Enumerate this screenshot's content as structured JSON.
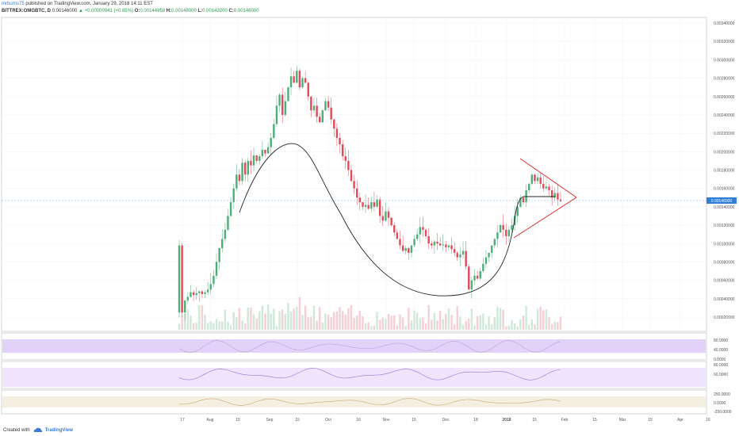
{
  "header": {
    "line1_author": "mrburns75",
    "line1_rest": "published on TradingView.com, January 29, 2018 14:11 EST",
    "symbol": "BITTREX:OMGBTC, D",
    "last": "0.00146000",
    "change": "▲ +0.00000941 (+0.65%)",
    "o_label": "O:",
    "o": "0.00144958",
    "h_label": "H:",
    "h": "0.00148000",
    "l_label": "L:",
    "l": "0.00143200",
    "c_label": "C:",
    "c": "0.00146000"
  },
  "footer": {
    "created": "Created with",
    "brand": "TradingView"
  },
  "colors": {
    "up": "#4caf7a",
    "down": "#e04a5a",
    "triangle": "#e02020",
    "rsi_fill": "#d9c8f5",
    "rsi_line": "#9c6fd6",
    "price_badge": "#2f7fd6"
  },
  "chart_data": {
    "type": "candlestick",
    "symbol": "BITTREX:OMGBTC",
    "interval": "D",
    "last_price": "0.00146000",
    "y_ticks": [
      "0.00340000",
      "0.00320000",
      "0.00300000",
      "0.00280000",
      "0.00260000",
      "0.00240000",
      "0.00220000",
      "0.00200000",
      "0.00180000",
      "0.00160000",
      "0.00140000",
      "0.00120000",
      "0.00100000",
      "0.00080000",
      "0.00060000",
      "0.00040000",
      "0.00020000"
    ],
    "x_ticks": [
      "17",
      "Aug",
      "15",
      "Sep",
      "15",
      "Oct",
      "16",
      "Nov",
      "15",
      "Dec",
      "18",
      "2018",
      "15",
      "Feb",
      "15",
      "Mar",
      "15",
      "Apr",
      "16"
    ],
    "ylim": [
      0.0001,
      0.0035
    ],
    "closes": [
      0.00098,
      0.00025,
      0.00038,
      0.00042,
      0.00047,
      0.00044,
      0.00046,
      0.00048,
      0.00045,
      0.00047,
      0.0005,
      0.00056,
      0.00065,
      0.0008,
      0.00095,
      0.00105,
      0.00115,
      0.0013,
      0.00145,
      0.0016,
      0.00175,
      0.00168,
      0.00188,
      0.00175,
      0.0019,
      0.00185,
      0.00196,
      0.0019,
      0.00195,
      0.00202,
      0.00198,
      0.00205,
      0.00215,
      0.0023,
      0.0025,
      0.00262,
      0.0024,
      0.00255,
      0.0027,
      0.00282,
      0.00275,
      0.00288,
      0.0027,
      0.0028,
      0.00275,
      0.0026,
      0.00245,
      0.0025,
      0.00238,
      0.00232,
      0.00245,
      0.00255,
      0.00248,
      0.00235,
      0.00225,
      0.00215,
      0.00208,
      0.00195,
      0.0019,
      0.0018,
      0.00168,
      0.0016,
      0.0015,
      0.00145,
      0.0014,
      0.00142,
      0.00138,
      0.00145,
      0.0014,
      0.00148,
      0.0013,
      0.00125,
      0.00135,
      0.00128,
      0.0012,
      0.00112,
      0.00105,
      0.00098,
      0.00092,
      0.00095,
      0.0009,
      0.00098,
      0.00105,
      0.0011,
      0.00118,
      0.00115,
      0.00108,
      0.001,
      0.00098,
      0.00102,
      0.001,
      0.00098,
      0.00099,
      0.00096,
      0.00098,
      0.00094,
      0.0009,
      0.00085,
      0.00088,
      0.00092,
      0.00075,
      0.0005,
      0.0006,
      0.00065,
      0.00062,
      0.0007,
      0.00078,
      0.00085,
      0.0009,
      0.00098,
      0.00105,
      0.00112,
      0.0012,
      0.00115,
      0.00108,
      0.00115,
      0.0012,
      0.0013,
      0.0014,
      0.0015,
      0.00145,
      0.00158,
      0.00165,
      0.00175,
      0.00168,
      0.00172,
      0.00165,
      0.0016,
      0.00162,
      0.00158,
      0.0015,
      0.00155,
      0.00148,
      0.00146
    ]
  }
}
